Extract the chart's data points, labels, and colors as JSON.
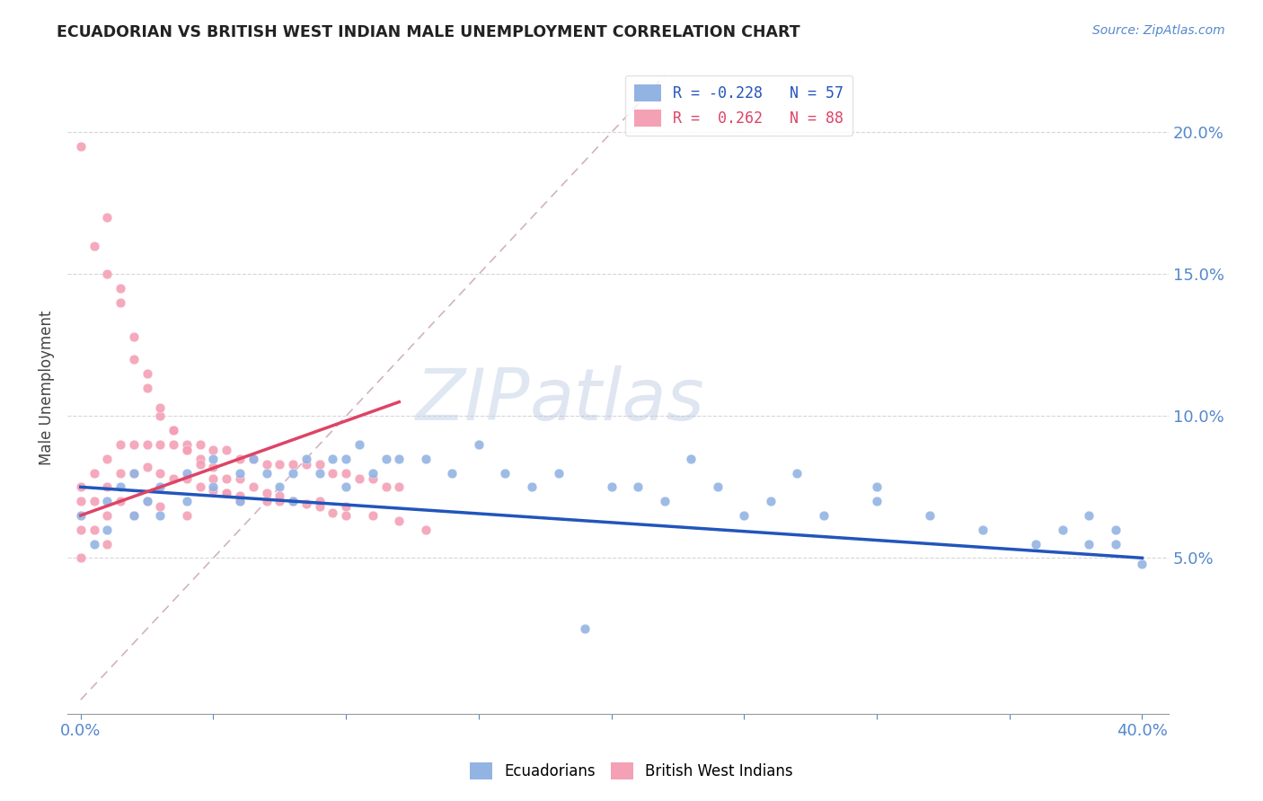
{
  "title": "ECUADORIAN VS BRITISH WEST INDIAN MALE UNEMPLOYMENT CORRELATION CHART",
  "source": "Source: ZipAtlas.com",
  "ylabel_label": "Male Unemployment",
  "xlim": [
    0.0,
    0.42
  ],
  "ylim": [
    -0.01,
    0.225
  ],
  "plot_xlim": [
    0.0,
    0.4
  ],
  "plot_ylim": [
    0.0,
    0.22
  ],
  "yticks_right": [
    0.05,
    0.1,
    0.15,
    0.2
  ],
  "xticks": [
    0.0,
    0.05,
    0.1,
    0.15,
    0.2,
    0.25,
    0.3,
    0.35,
    0.4
  ],
  "legend_blue_r": "R = -0.228",
  "legend_blue_n": "N = 57",
  "legend_pink_r": "R =  0.262",
  "legend_pink_n": "N = 88",
  "watermark_zip": "ZIP",
  "watermark_atlas": "atlas",
  "blue_color": "#92b4e3",
  "pink_color": "#f4a0b5",
  "blue_line_color": "#2255bb",
  "pink_line_color": "#dd4466",
  "diag_line_color": "#ccaabb",
  "title_color": "#222222",
  "axis_label_color": "#444444",
  "tick_color": "#5588cc",
  "grid_color": "#cccccc",
  "blue_trend_start": 0.075,
  "blue_trend_end": 0.05,
  "pink_trend_x_start": 0.0,
  "pink_trend_x_end": 0.12,
  "pink_trend_y_start": 0.065,
  "pink_trend_y_end": 0.105,
  "ecu_x": [
    0.0,
    0.005,
    0.01,
    0.01,
    0.015,
    0.02,
    0.02,
    0.025,
    0.03,
    0.03,
    0.04,
    0.04,
    0.05,
    0.05,
    0.06,
    0.06,
    0.065,
    0.07,
    0.075,
    0.08,
    0.08,
    0.085,
    0.09,
    0.095,
    0.1,
    0.1,
    0.105,
    0.11,
    0.115,
    0.12,
    0.13,
    0.14,
    0.15,
    0.16,
    0.17,
    0.18,
    0.19,
    0.2,
    0.21,
    0.22,
    0.23,
    0.24,
    0.25,
    0.26,
    0.27,
    0.28,
    0.3,
    0.3,
    0.32,
    0.34,
    0.36,
    0.37,
    0.38,
    0.38,
    0.39,
    0.39,
    0.4
  ],
  "ecu_y": [
    0.065,
    0.055,
    0.07,
    0.06,
    0.075,
    0.065,
    0.08,
    0.07,
    0.075,
    0.065,
    0.08,
    0.07,
    0.085,
    0.075,
    0.08,
    0.07,
    0.085,
    0.08,
    0.075,
    0.08,
    0.07,
    0.085,
    0.08,
    0.085,
    0.085,
    0.075,
    0.09,
    0.08,
    0.085,
    0.085,
    0.085,
    0.08,
    0.09,
    0.08,
    0.075,
    0.08,
    0.025,
    0.075,
    0.075,
    0.07,
    0.085,
    0.075,
    0.065,
    0.07,
    0.08,
    0.065,
    0.07,
    0.075,
    0.065,
    0.06,
    0.055,
    0.06,
    0.055,
    0.065,
    0.055,
    0.06,
    0.048
  ],
  "bwi_x": [
    0.0,
    0.0,
    0.0,
    0.0,
    0.005,
    0.005,
    0.005,
    0.01,
    0.01,
    0.01,
    0.01,
    0.015,
    0.015,
    0.015,
    0.02,
    0.02,
    0.02,
    0.025,
    0.025,
    0.025,
    0.03,
    0.03,
    0.03,
    0.035,
    0.035,
    0.04,
    0.04,
    0.04,
    0.045,
    0.045,
    0.05,
    0.05,
    0.055,
    0.055,
    0.06,
    0.06,
    0.065,
    0.07,
    0.07,
    0.075,
    0.075,
    0.08,
    0.08,
    0.085,
    0.09,
    0.09,
    0.095,
    0.1,
    0.1,
    0.105,
    0.11,
    0.11,
    0.115,
    0.12,
    0.12,
    0.13,
    0.0,
    0.005,
    0.01,
    0.015,
    0.02,
    0.025,
    0.03,
    0.035,
    0.04,
    0.045,
    0.05,
    0.055,
    0.06,
    0.065,
    0.07,
    0.075,
    0.08,
    0.085,
    0.09,
    0.095,
    0.1,
    0.01,
    0.015,
    0.02,
    0.025,
    0.03,
    0.035,
    0.04,
    0.045,
    0.05,
    0.055,
    0.06
  ],
  "bwi_y": [
    0.075,
    0.07,
    0.06,
    0.05,
    0.08,
    0.07,
    0.06,
    0.085,
    0.075,
    0.065,
    0.055,
    0.09,
    0.08,
    0.07,
    0.09,
    0.08,
    0.065,
    0.09,
    0.082,
    0.07,
    0.09,
    0.08,
    0.068,
    0.09,
    0.078,
    0.088,
    0.078,
    0.065,
    0.09,
    0.075,
    0.088,
    0.074,
    0.088,
    0.073,
    0.085,
    0.072,
    0.085,
    0.083,
    0.07,
    0.083,
    0.07,
    0.083,
    0.07,
    0.083,
    0.083,
    0.07,
    0.08,
    0.08,
    0.068,
    0.078,
    0.078,
    0.065,
    0.075,
    0.075,
    0.063,
    0.06,
    0.195,
    0.16,
    0.15,
    0.14,
    0.12,
    0.11,
    0.1,
    0.095,
    0.09,
    0.085,
    0.082,
    0.078,
    0.078,
    0.075,
    0.073,
    0.072,
    0.07,
    0.069,
    0.068,
    0.066,
    0.065,
    0.17,
    0.145,
    0.128,
    0.115,
    0.103,
    0.095,
    0.088,
    0.083,
    0.078,
    0.073,
    0.07
  ]
}
